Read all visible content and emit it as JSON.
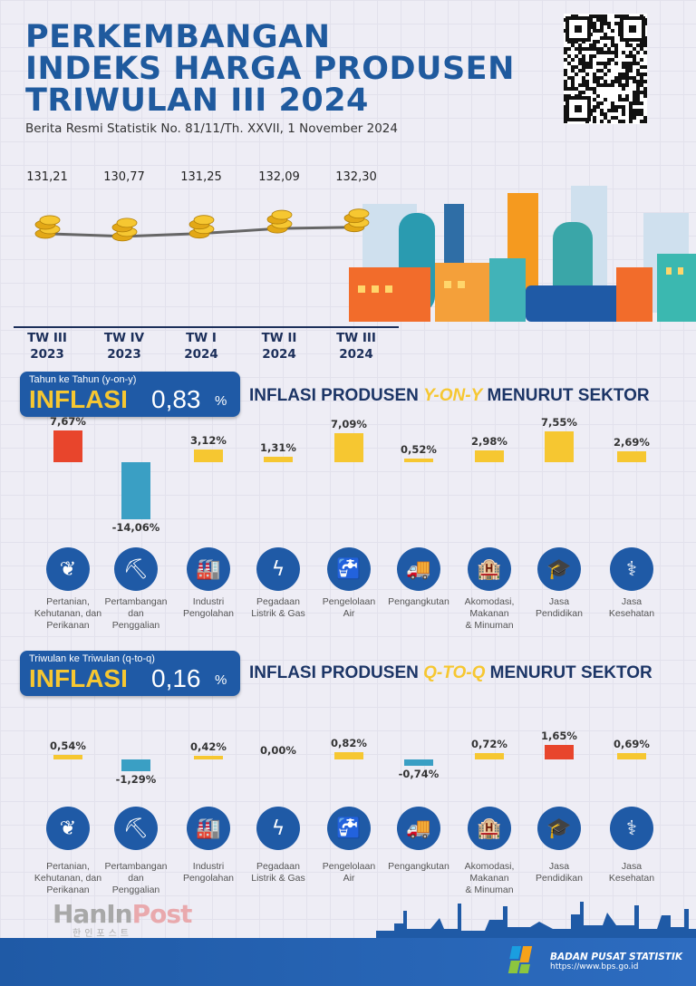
{
  "header": {
    "title_lines": [
      "PERKEMBANGAN",
      "INDEKS HARGA PRODUSEN",
      "TRIWULAN III 2024"
    ],
    "subtitle": "Berita Resmi Statistik No. 81/11/Th. XXVII, 1 November 2024"
  },
  "colors": {
    "primary": "#1f5aa6",
    "accent": "#f6c731",
    "title": "#1f5a9e",
    "negative_bar": "#3a9fc4"
  },
  "chart_data": [
    {
      "type": "line",
      "categories": [
        [
          "TW III",
          "2023"
        ],
        [
          "TW IV",
          "2023"
        ],
        [
          "TW I",
          "2024"
        ],
        [
          "TW II",
          "2024"
        ],
        [
          "TW III",
          "2024"
        ]
      ],
      "values": [
        131.21,
        130.77,
        131.25,
        132.09,
        132.3
      ],
      "labels": [
        "131,21",
        "130,77",
        "131,25",
        "132,09",
        "132,30"
      ],
      "marker": "coin-stack-icon"
    },
    {
      "type": "bar",
      "title": "INFLASI PRODUSEN Y-ON-Y MENURUT SEKTOR",
      "title_parts": [
        "INFLASI PRODUSEN ",
        "Y-ON-Y",
        " MENURUT SEKTOR"
      ],
      "headline": {
        "caption": "Tahun ke Tahun (y-on-y)",
        "label": "INFLASI",
        "value": "0,83",
        "unit": "%"
      },
      "categories": [
        "Pertanian, Kehutanan, dan Perikanan",
        "Pertambangan dan Penggalian",
        "Industri Pengolahan",
        "Pegadaan Listrik & Gas",
        "Pengelolaan Air",
        "Pengangkutan",
        "Akomodasi, Makanan & Minuman",
        "Jasa Pendidikan",
        "Jasa Kesehatan"
      ],
      "values": [
        7.67,
        -14.06,
        3.12,
        1.31,
        7.09,
        0.52,
        2.98,
        7.55,
        2.69
      ],
      "labels": [
        "7,67%",
        "-14,06%",
        "3,12%",
        "1,31%",
        "7,09%",
        "0,52%",
        "2,98%",
        "7,55%",
        "2,69%"
      ]
    },
    {
      "type": "bar",
      "title": "INFLASI PRODUSEN Q-TO-Q MENURUT SEKTOR",
      "title_parts": [
        "INFLASI PRODUSEN ",
        "Q-TO-Q",
        " MENURUT SEKTOR"
      ],
      "headline": {
        "caption": "Triwulan ke Triwulan (q-to-q)",
        "label": "INFLASI",
        "value": "0,16",
        "unit": "%"
      },
      "categories": [
        "Pertanian, Kehutanan, dan Perikanan",
        "Pertambangan dan Penggalian",
        "Industri Pengolahan",
        "Pegadaan Listrik & Gas",
        "Pengelolaan Air",
        "Pengangkutan",
        "Akomodasi, Makanan & Minuman",
        "Jasa Pendidikan",
        "Jasa Kesehatan"
      ],
      "values": [
        0.54,
        -1.29,
        0.42,
        0.0,
        0.82,
        -0.74,
        0.72,
        1.65,
        0.69
      ],
      "labels": [
        "0,54%",
        "-1,29%",
        "0,42%",
        "0,00%",
        "0,82%",
        "-0,74%",
        "0,72%",
        "1,65%",
        "0,69%"
      ]
    }
  ],
  "sector_labels": [
    [
      "Pertanian,",
      "Kehutanan, dan",
      "Perikanan"
    ],
    [
      "Pertambangan",
      "dan",
      "Penggalian"
    ],
    [
      "Industri",
      "Pengolahan"
    ],
    [
      "Pegadaan",
      "Listrik & Gas"
    ],
    [
      "Pengelolaan",
      "Air"
    ],
    [
      "Pengangkutan"
    ],
    [
      "Akomodasi,",
      "Makanan",
      "& Minuman"
    ],
    [
      "Jasa",
      "Pendidikan"
    ],
    [
      "Jasa",
      "Kesehatan"
    ]
  ],
  "sector_icons": [
    "leaf-icon",
    "oil-pump-icon",
    "factory-icon",
    "electricity-gas-icon",
    "water-tap-icon",
    "transport-icon",
    "hotel-dining-icon",
    "graduation-cap-icon",
    "health-stethoscope-icon"
  ],
  "watermark": {
    "text_a": "HanIn",
    "text_b": "Post",
    "korean": "한인포스트"
  },
  "footer": {
    "org": "BADAN PUSAT STATISTIK",
    "url": "https://www.bps.go.id"
  }
}
